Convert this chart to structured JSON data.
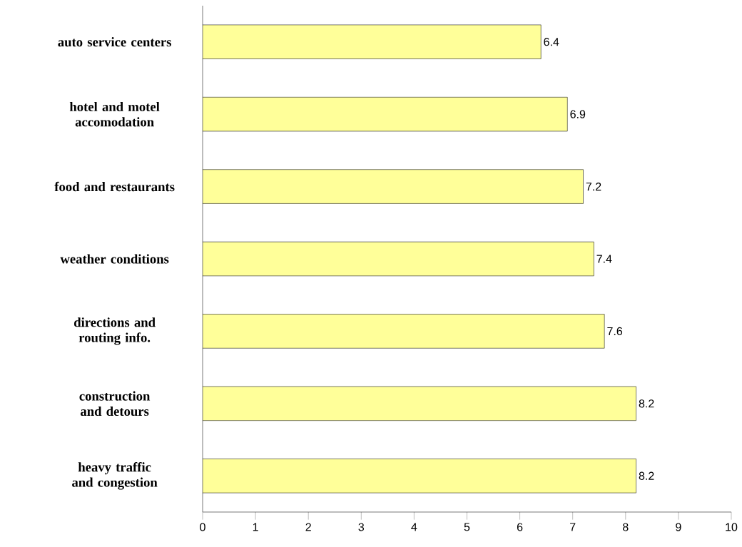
{
  "chart_data": {
    "type": "bar",
    "orientation": "horizontal",
    "categories": [
      "auto service centers",
      "hotel and motel accomodation",
      "food and restaurants",
      "weather conditions",
      "directions and routing info.",
      "construction and detours",
      "heavy traffic and congestion"
    ],
    "values": [
      6.4,
      6.9,
      7.2,
      7.4,
      7.6,
      8.2,
      8.2
    ],
    "color": "#ffff99",
    "xlim": [
      0,
      10
    ],
    "xticks": [
      0,
      1,
      2,
      3,
      4,
      5,
      6,
      7,
      8,
      9,
      10
    ],
    "data_labels": true
  }
}
